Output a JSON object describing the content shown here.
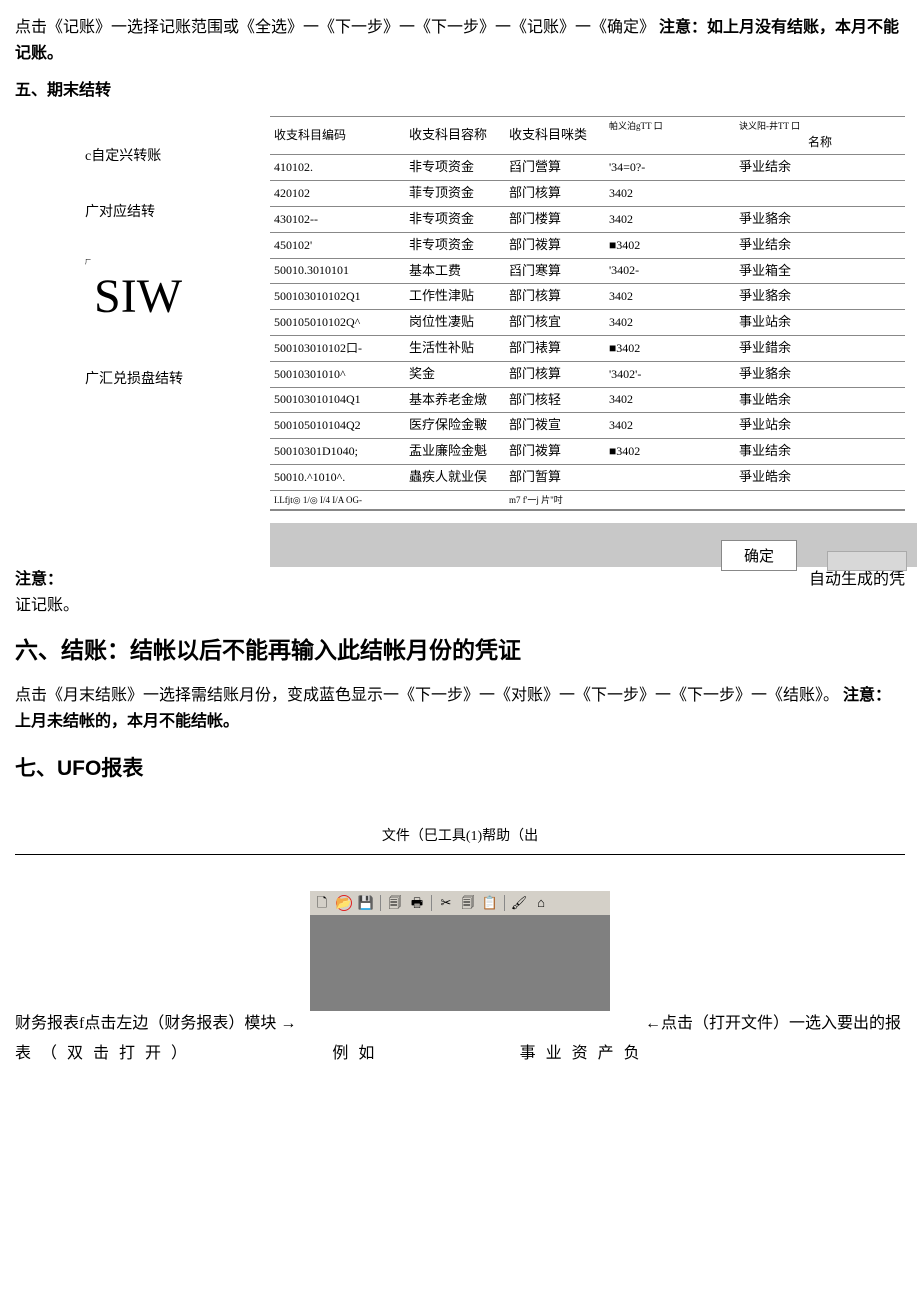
{
  "p1_a": "点击《记账》一选择记账范围或《全选》一《下一步》一《下一步》一《记账》一《确定》 ",
  "p1_b": "注意：如上月没有结账，本月不能记账。",
  "h5": "五、期末结转",
  "left_items": {
    "a": "c自定兴转账",
    "b": "广对应结转",
    "siw_pre": "厂",
    "siw": "SIW",
    "c": "广汇兑损盘结转"
  },
  "table": {
    "headers": {
      "c1": "收支科目编码",
      "c2": "收支科目容称",
      "c3": "收支科目咪类",
      "c4_top": "帕义泊gTT 口",
      "c5_top": "诀义阳-井TT 口",
      "c5_sub": "名称"
    },
    "rows": [
      [
        "410102.",
        "非专项资金",
        "舀门營算",
        "'34=0?-",
        "爭业结余"
      ],
      [
        "420102",
        "菲专顶资金",
        "部门核算",
        "3402",
        ""
      ],
      [
        "430102--",
        "非专项资金",
        "部门楼算",
        "3402",
        "爭业貉余"
      ],
      [
        "450102'",
        "非专项资金",
        "部门袯算",
        "■3402",
        "爭业结余"
      ],
      [
        "50010.3010101",
        "基本工费",
        "舀门寒算",
        "'3402-",
        "爭业箱全"
      ],
      [
        "500103010102Q1",
        "工作性津贴",
        "部门核算",
        "3402",
        "爭业貉余"
      ],
      [
        "500105010102Q^",
        "岗位性凄贴",
        "部门核宜",
        "3402",
        "事业站余"
      ],
      [
        "500103010102口-",
        "生活性补贴",
        "部门裱算",
        "■3402",
        "爭业錯余"
      ],
      [
        "50010301010^",
        "奖金",
        "部门核算",
        "'3402'-",
        "爭业貉余"
      ],
      [
        "500103010104Q1",
        "基本养老金燉",
        "部门核轻",
        "3402",
        "事业皓余"
      ],
      [
        "500105010104Q2",
        "医疗保险金皸",
        "部门袯宣",
        "3402",
        "爭业站余"
      ],
      [
        "50010301D1040;",
        "盂业廉险金魁",
        "部门袯算",
        "■3402",
        "事业结余"
      ],
      [
        "50010.^1010^.",
        "蟲疾人就业俣",
        "部门暂算",
        "",
        "爭业皓余"
      ]
    ],
    "footer_row": [
      "I.Lfjt◎ 1/◎ I/4 I/A OG-",
      "",
      "m7 f'一j 片\"吋",
      "",
      ""
    ]
  },
  "btn_ok": "确定",
  "p_after": "自动生成的凭",
  "p_after2_a": "注意：",
  "p_after2_b": "证记账。",
  "h6": "六、结账：结帐以后不能再输入此结帐月份的凭证",
  "p6_a": "点击《月末结账》一选择需结账月份，变成蓝色显示一《下一步》一《对账》一《下一步》一《下一步》一《结账》。 ",
  "p6_b": "注意：上月未结帐的，本月不能结帐。",
  "h7": "七、UFO报表",
  "menu_line": "文件（巳工具(1)帮助（出",
  "toolbar_icons": {
    "new": "🗋",
    "open": "📂",
    "save": "💾",
    "preview": "🗐",
    "print": "🖶",
    "cut": "✂",
    "copy": "🗐",
    "paste": "📋",
    "brush": "🖌",
    "home": "⌂"
  },
  "bottom": {
    "left": "财务报表f点击左边（财务报表）模块 →",
    "right": "←点击（打开文件）一选入要出的报",
    "row2_a": "表（双击打开）",
    "row2_b": "例如",
    "row2_c": "事业资产负"
  },
  "colors": {
    "toolbar_bg": "#d4d0c8",
    "app_bg": "#808080",
    "circle": "#e02020",
    "btnbar": "#c8c8c8",
    "border": "#888888"
  }
}
